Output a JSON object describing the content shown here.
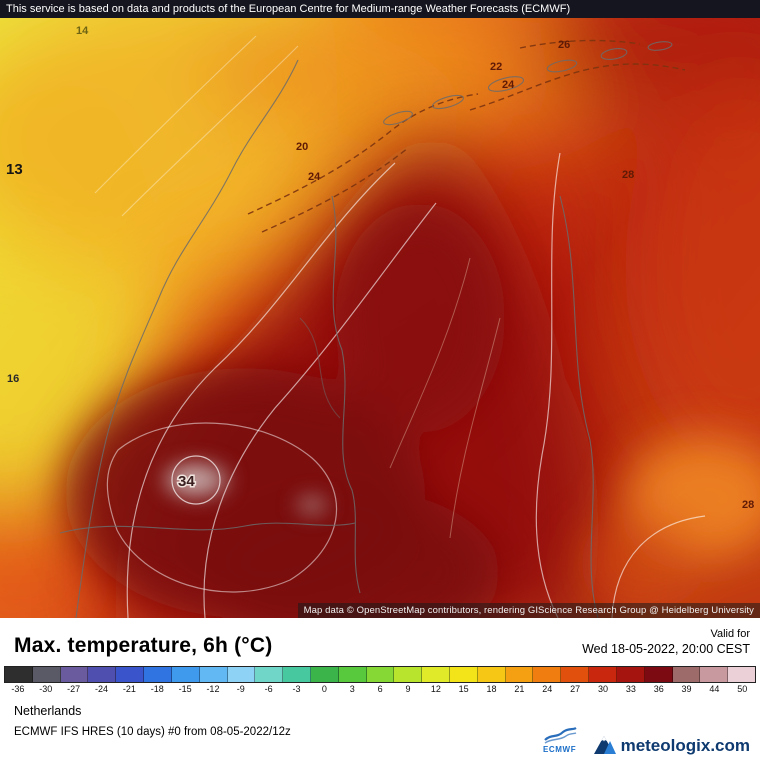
{
  "banner": {
    "text": "This service is based on data and products of the European Centre for Medium-range Weather Forecasts (ECMWF)"
  },
  "map": {
    "contour_labels": [
      "14",
      "13",
      "16",
      "20",
      "24",
      "22",
      "24",
      "26",
      "28",
      "34",
      "28"
    ],
    "attribution": "Map data © OpenStreetMap contributors, rendering GIScience Research Group @ Heidelberg University"
  },
  "header": {
    "title": "Max. temperature, 6h (°C)",
    "valid_label": "Valid for",
    "valid_datetime": "Wed 18-05-2022, 20:00 CEST"
  },
  "scale": {
    "ticks": [
      "-36",
      "-30",
      "-27",
      "-24",
      "-21",
      "-18",
      "-15",
      "-12",
      "-9",
      "-6",
      "-3",
      "0",
      "3",
      "6",
      "9",
      "12",
      "15",
      "18",
      "21",
      "24",
      "27",
      "30",
      "33",
      "36",
      "39",
      "44",
      "50"
    ],
    "colors": [
      "#2e2e2e",
      "#5a5a66",
      "#6a5a9e",
      "#4f4fb0",
      "#3a55cc",
      "#2f74e0",
      "#3f9aee",
      "#62b8f2",
      "#8ed2f6",
      "#6fd6c8",
      "#48c89e",
      "#3bb54a",
      "#58c93c",
      "#86d934",
      "#b8e42e",
      "#e0ea28",
      "#f2e418",
      "#f6c714",
      "#f5a012",
      "#ef7d10",
      "#e2500e",
      "#c9280f",
      "#a5140f",
      "#7c0a12",
      "#9e6b6b",
      "#c89aa0",
      "#ecd0d8"
    ]
  },
  "footer": {
    "region": "Netherlands",
    "model": "ECMWF IFS HRES (10 days) #0 from 08-05-2022/12z",
    "ecmwf_label": "ECMWF",
    "brand": "meteologix.com"
  }
}
